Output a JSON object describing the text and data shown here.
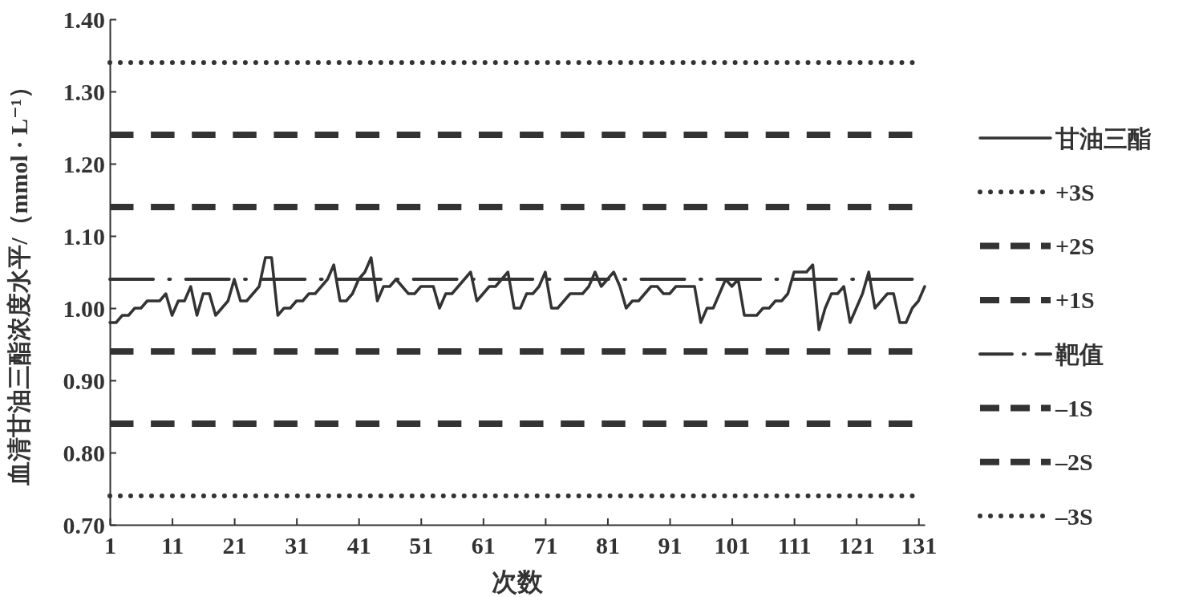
{
  "chart_data": {
    "type": "line",
    "xlabel": "次数",
    "ylabel": "血清甘油三酯浓度水平/（mmol · L⁻¹）",
    "xlim": [
      1,
      132
    ],
    "xticks": [
      1,
      11,
      21,
      31,
      41,
      51,
      61,
      71,
      81,
      91,
      101,
      111,
      121,
      131
    ],
    "ylim": [
      0.7,
      1.4
    ],
    "yticks": [
      {
        "value": 0.7,
        "label": "0.70"
      },
      {
        "value": 0.8,
        "label": "0.80"
      },
      {
        "value": 0.9,
        "label": "0.90"
      },
      {
        "value": 1.0,
        "label": "1.00"
      },
      {
        "value": 1.1,
        "label": "1.10"
      },
      {
        "value": 1.2,
        "label": "1.20"
      },
      {
        "value": 1.3,
        "label": "1.30"
      },
      {
        "value": 1.4,
        "label": "1.40"
      }
    ],
    "grid": false,
    "legend": "right",
    "marker": "none",
    "series": [
      {
        "name": "甘油三酯",
        "color": "#333333",
        "line_style": "solid",
        "x": [
          1,
          2,
          3,
          4,
          5,
          6,
          7,
          8,
          9,
          10,
          11,
          12,
          13,
          14,
          15,
          16,
          17,
          18,
          19,
          20,
          21,
          22,
          23,
          24,
          25,
          26,
          27,
          28,
          29,
          30,
          31,
          32,
          33,
          34,
          35,
          36,
          37,
          38,
          39,
          40,
          41,
          42,
          43,
          44,
          45,
          46,
          47,
          48,
          49,
          50,
          51,
          52,
          53,
          54,
          55,
          56,
          57,
          58,
          59,
          60,
          61,
          62,
          63,
          64,
          65,
          66,
          67,
          68,
          69,
          70,
          71,
          72,
          73,
          74,
          75,
          76,
          77,
          78,
          79,
          80,
          81,
          82,
          83,
          84,
          85,
          86,
          87,
          88,
          89,
          90,
          91,
          92,
          93,
          94,
          95,
          96,
          97,
          98,
          99,
          100,
          101,
          102,
          103,
          104,
          105,
          106,
          107,
          108,
          109,
          110,
          111,
          112,
          113,
          114,
          115,
          116,
          117,
          118,
          119,
          120,
          121,
          122,
          123,
          124,
          125,
          126,
          127,
          128,
          129,
          130,
          131,
          132
        ],
        "values": [
          0.98,
          0.98,
          0.99,
          0.99,
          1.0,
          1.0,
          1.01,
          1.01,
          1.01,
          1.02,
          0.99,
          1.01,
          1.01,
          1.03,
          0.99,
          1.02,
          1.02,
          0.99,
          1.0,
          1.01,
          1.04,
          1.01,
          1.01,
          1.02,
          1.03,
          1.07,
          1.07,
          0.99,
          1.0,
          1.0,
          1.01,
          1.01,
          1.02,
          1.02,
          1.03,
          1.04,
          1.06,
          1.01,
          1.01,
          1.02,
          1.04,
          1.05,
          1.07,
          1.01,
          1.03,
          1.03,
          1.04,
          1.03,
          1.02,
          1.02,
          1.03,
          1.03,
          1.03,
          1.0,
          1.02,
          1.02,
          1.03,
          1.04,
          1.05,
          1.01,
          1.02,
          1.03,
          1.03,
          1.04,
          1.05,
          1.0,
          1.0,
          1.02,
          1.02,
          1.03,
          1.05,
          1.0,
          1.0,
          1.01,
          1.02,
          1.02,
          1.02,
          1.03,
          1.05,
          1.03,
          1.04,
          1.05,
          1.03,
          1.0,
          1.01,
          1.01,
          1.02,
          1.03,
          1.03,
          1.02,
          1.02,
          1.03,
          1.03,
          1.03,
          1.03,
          0.98,
          1.0,
          1.0,
          1.02,
          1.04,
          1.03,
          1.04,
          0.99,
          0.99,
          0.99,
          1.0,
          1.0,
          1.01,
          1.01,
          1.02,
          1.05,
          1.05,
          1.05,
          1.06,
          0.97,
          1.0,
          1.02,
          1.02,
          1.03,
          0.98,
          1.0,
          1.02,
          1.05,
          1.0,
          1.01,
          1.02,
          1.02,
          0.98,
          0.98,
          1.0,
          1.01,
          1.03
        ]
      },
      {
        "name": "+3S",
        "color": "#333333",
        "line_style": "dotted",
        "x": [
          1,
          130
        ],
        "values": [
          1.34,
          1.34
        ]
      },
      {
        "name": "+2S",
        "color": "#333333",
        "line_style": "dashed",
        "x": [
          1,
          130
        ],
        "values": [
          1.24,
          1.24
        ]
      },
      {
        "name": "+1S",
        "color": "#333333",
        "line_style": "dashed",
        "x": [
          1,
          130
        ],
        "values": [
          1.14,
          1.14
        ]
      },
      {
        "name": "靶值",
        "color": "#333333",
        "line_style": "dashdot",
        "x": [
          1,
          130
        ],
        "values": [
          1.04,
          1.04
        ]
      },
      {
        "name": "–1S",
        "color": "#333333",
        "line_style": "dashed",
        "x": [
          1,
          130
        ],
        "values": [
          0.94,
          0.94
        ]
      },
      {
        "name": "–2S",
        "color": "#333333",
        "line_style": "dashed",
        "x": [
          1,
          130
        ],
        "values": [
          0.84,
          0.84
        ]
      },
      {
        "name": "–3S",
        "color": "#333333",
        "line_style": "dotted",
        "x": [
          1,
          130
        ],
        "values": [
          0.74,
          0.74
        ]
      }
    ]
  }
}
